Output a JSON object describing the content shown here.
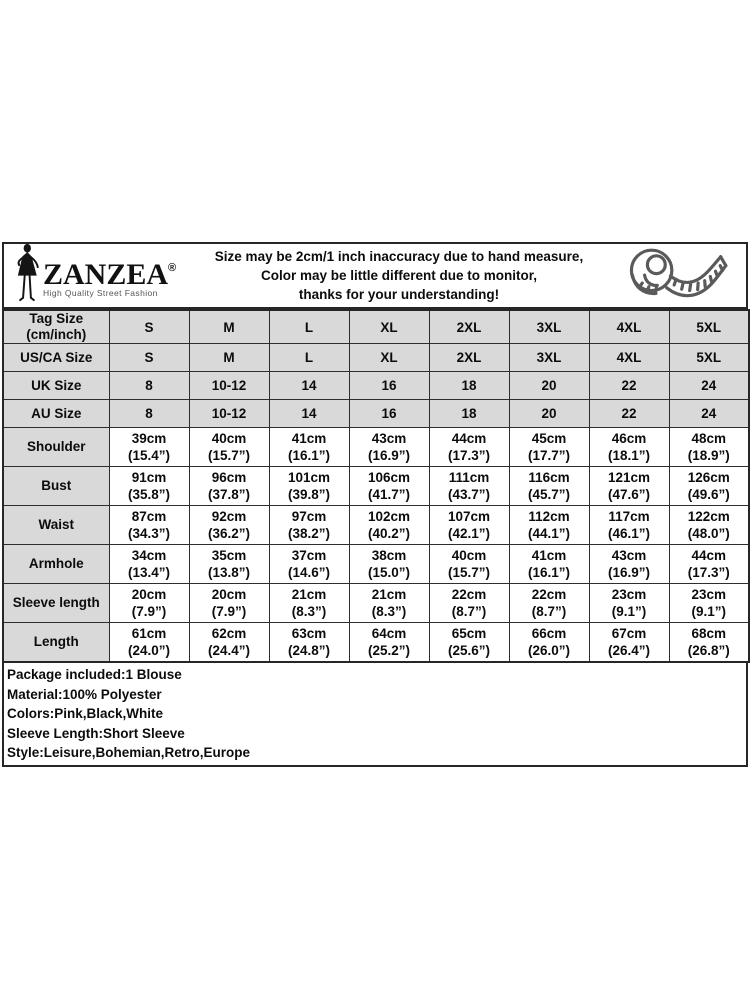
{
  "brand": {
    "name": "ZANZEA",
    "registered_mark": "®",
    "tagline": "High Quality Street Fashion"
  },
  "notice": {
    "line1": "Size may be 2cm/1 inch inaccuracy due to hand measure,",
    "line2": "Color may be little different due to monitor,",
    "line3": "thanks for your understanding!"
  },
  "icons": {
    "logo_figure": "woman-silhouette-icon",
    "tape": "measuring-tape-icon"
  },
  "colors": {
    "cell_gray": "#d9d9d9",
    "border_dark": "#2d2d2d",
    "tape_gray": "#5a5a5a",
    "tagline_gray": "#555555"
  },
  "size_table": {
    "rows": [
      {
        "type": "size",
        "label": "Tag Size\n(cm/inch)",
        "values": [
          "S",
          "M",
          "L",
          "XL",
          "2XL",
          "3XL",
          "4XL",
          "5XL"
        ]
      },
      {
        "type": "size",
        "label": "US/CA Size",
        "values": [
          "S",
          "M",
          "L",
          "XL",
          "2XL",
          "3XL",
          "4XL",
          "5XL"
        ]
      },
      {
        "type": "size",
        "label": "UK Size",
        "values": [
          "8",
          "10-12",
          "14",
          "16",
          "18",
          "20",
          "22",
          "24"
        ]
      },
      {
        "type": "size",
        "label": "AU Size",
        "values": [
          "8",
          "10-12",
          "14",
          "16",
          "18",
          "20",
          "22",
          "24"
        ]
      },
      {
        "type": "measure",
        "label": "Shoulder",
        "values": [
          {
            "cm": "39cm",
            "inch": "(15.4”)"
          },
          {
            "cm": "40cm",
            "inch": "(15.7”)"
          },
          {
            "cm": "41cm",
            "inch": "(16.1”)"
          },
          {
            "cm": "43cm",
            "inch": "(16.9”)"
          },
          {
            "cm": "44cm",
            "inch": "(17.3”)"
          },
          {
            "cm": "45cm",
            "inch": "(17.7”)"
          },
          {
            "cm": "46cm",
            "inch": "(18.1”)"
          },
          {
            "cm": "48cm",
            "inch": "(18.9”)"
          }
        ]
      },
      {
        "type": "measure",
        "label": "Bust",
        "values": [
          {
            "cm": "91cm",
            "inch": "(35.8”)"
          },
          {
            "cm": "96cm",
            "inch": "(37.8”)"
          },
          {
            "cm": "101cm",
            "inch": "(39.8”)"
          },
          {
            "cm": "106cm",
            "inch": "(41.7”)"
          },
          {
            "cm": "111cm",
            "inch": "(43.7”)"
          },
          {
            "cm": "116cm",
            "inch": "(45.7”)"
          },
          {
            "cm": "121cm",
            "inch": "(47.6”)"
          },
          {
            "cm": "126cm",
            "inch": "(49.6”)"
          }
        ]
      },
      {
        "type": "measure",
        "label": "Waist",
        "values": [
          {
            "cm": "87cm",
            "inch": "(34.3”)"
          },
          {
            "cm": "92cm",
            "inch": "(36.2”)"
          },
          {
            "cm": "97cm",
            "inch": "(38.2”)"
          },
          {
            "cm": "102cm",
            "inch": "(40.2”)"
          },
          {
            "cm": "107cm",
            "inch": "(42.1”)"
          },
          {
            "cm": "112cm",
            "inch": "(44.1”)"
          },
          {
            "cm": "117cm",
            "inch": "(46.1”)"
          },
          {
            "cm": "122cm",
            "inch": "(48.0”)"
          }
        ]
      },
      {
        "type": "measure",
        "label": "Armhole",
        "values": [
          {
            "cm": "34cm",
            "inch": "(13.4”)"
          },
          {
            "cm": "35cm",
            "inch": "(13.8”)"
          },
          {
            "cm": "37cm",
            "inch": "(14.6”)"
          },
          {
            "cm": "38cm",
            "inch": "(15.0”)"
          },
          {
            "cm": "40cm",
            "inch": "(15.7”)"
          },
          {
            "cm": "41cm",
            "inch": "(16.1”)"
          },
          {
            "cm": "43cm",
            "inch": "(16.9”)"
          },
          {
            "cm": "44cm",
            "inch": "(17.3”)"
          }
        ]
      },
      {
        "type": "measure",
        "label": "Sleeve length",
        "values": [
          {
            "cm": "20cm",
            "inch": "(7.9”)"
          },
          {
            "cm": "20cm",
            "inch": "(7.9”)"
          },
          {
            "cm": "21cm",
            "inch": "(8.3”)"
          },
          {
            "cm": "21cm",
            "inch": "(8.3”)"
          },
          {
            "cm": "22cm",
            "inch": "(8.7”)"
          },
          {
            "cm": "22cm",
            "inch": "(8.7”)"
          },
          {
            "cm": "23cm",
            "inch": "(9.1”)"
          },
          {
            "cm": "23cm",
            "inch": "(9.1”)"
          }
        ]
      },
      {
        "type": "measure",
        "label": "Length",
        "values": [
          {
            "cm": "61cm",
            "inch": "(24.0”)"
          },
          {
            "cm": "62cm",
            "inch": "(24.4”)"
          },
          {
            "cm": "63cm",
            "inch": "(24.8”)"
          },
          {
            "cm": "64cm",
            "inch": "(25.2”)"
          },
          {
            "cm": "65cm",
            "inch": "(25.6”)"
          },
          {
            "cm": "66cm",
            "inch": "(26.0”)"
          },
          {
            "cm": "67cm",
            "inch": "(26.4”)"
          },
          {
            "cm": "68cm",
            "inch": "(26.8”)"
          }
        ]
      }
    ]
  },
  "details": {
    "lines": [
      "Package included:1 Blouse",
      "Material:100% Polyester",
      "Colors:Pink,Black,White",
      "Sleeve Length:Short Sleeve",
      "Style:Leisure,Bohemian,Retro,Europe"
    ]
  }
}
